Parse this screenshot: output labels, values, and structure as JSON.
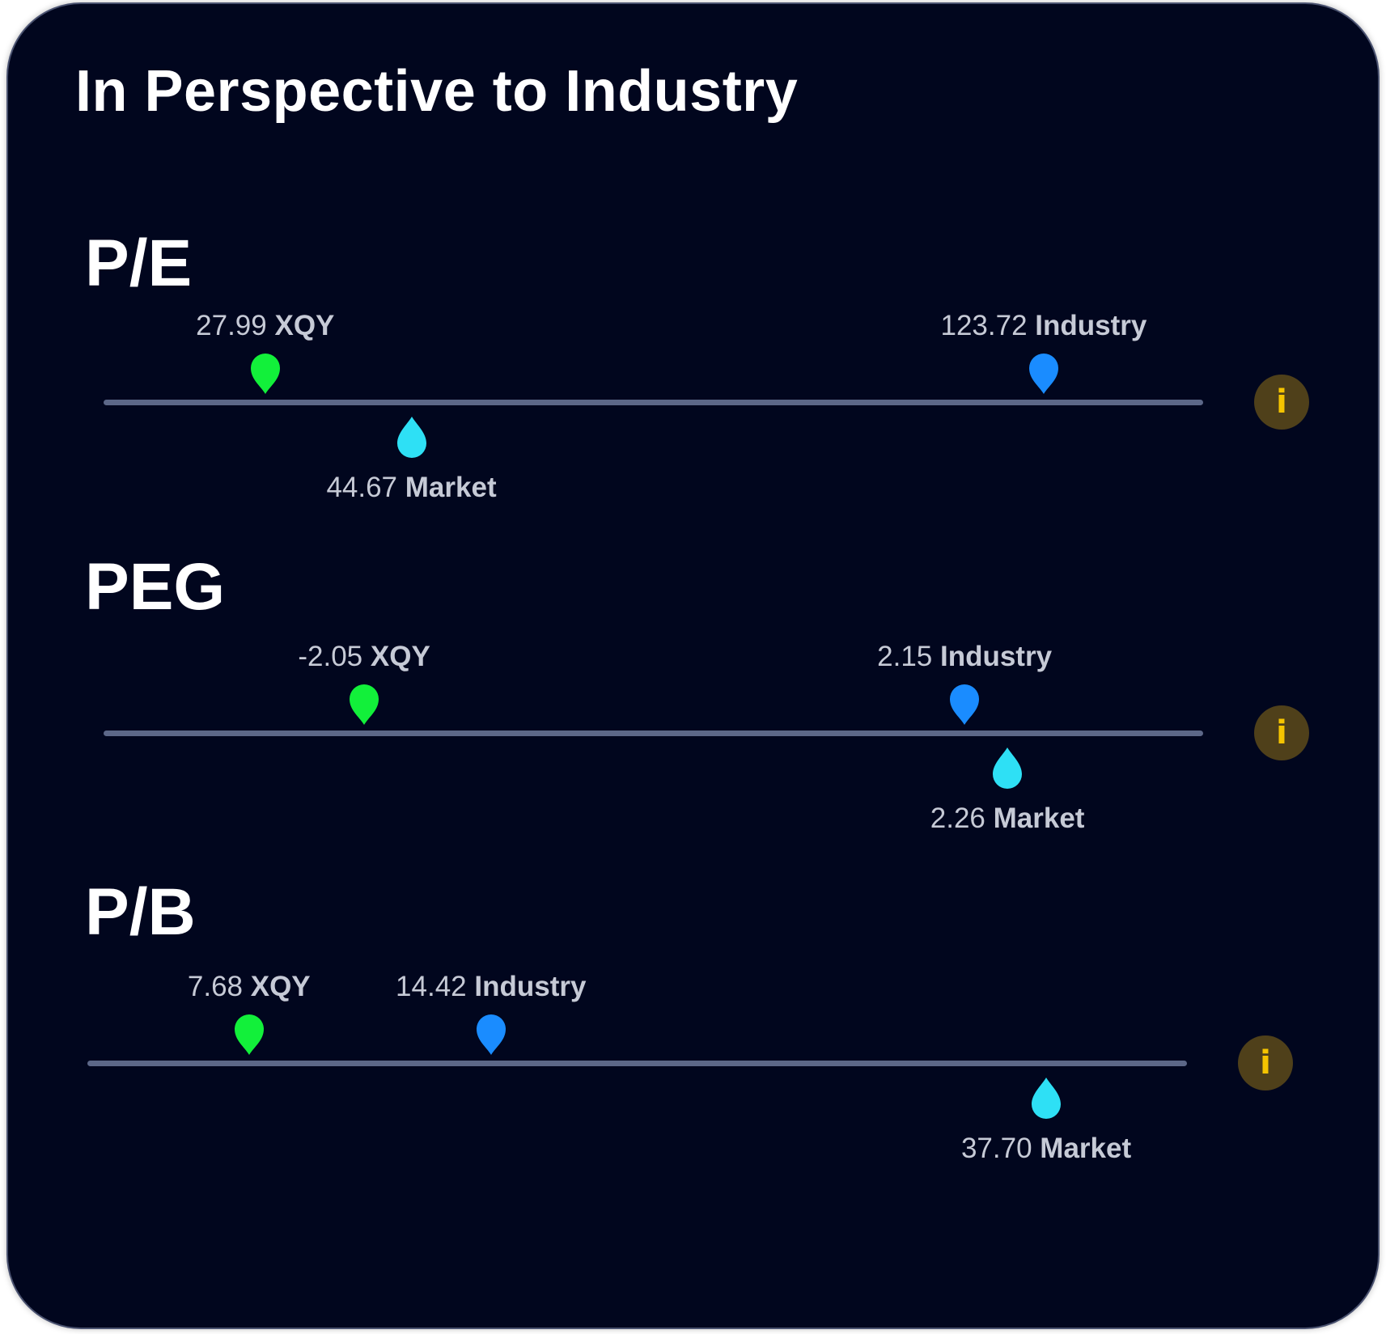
{
  "card": {
    "title": "In Perspective to Industry"
  },
  "colors": {
    "background": "#01061e",
    "company": "#12f03a",
    "industry": "#1a8cff",
    "market": "#2ee0f5",
    "track": "#5c6788",
    "info_bg": "#4f401a",
    "info_fg": "#f5c400"
  },
  "info_icon": "info-icon",
  "metrics": [
    {
      "label": "P/E",
      "company": {
        "value": "27.99",
        "name": "XQY",
        "pos": 0.147
      },
      "industry": {
        "value": "123.72",
        "name": "Industry",
        "pos": 0.855
      },
      "market": {
        "value": "44.67",
        "name": "Market",
        "pos": 0.28
      }
    },
    {
      "label": "PEG",
      "company": {
        "value": "-2.05",
        "name": "XQY",
        "pos": 0.237
      },
      "industry": {
        "value": "2.15",
        "name": "Industry",
        "pos": 0.783
      },
      "market": {
        "value": "2.26",
        "name": "Market",
        "pos": 0.822
      }
    },
    {
      "label": "P/B",
      "company": {
        "value": "7.68",
        "name": "XQY",
        "pos": 0.147
      },
      "industry": {
        "value": "14.42",
        "name": "Industry",
        "pos": 0.367
      },
      "market": {
        "value": "37.70",
        "name": "Market",
        "pos": 0.872
      }
    }
  ]
}
